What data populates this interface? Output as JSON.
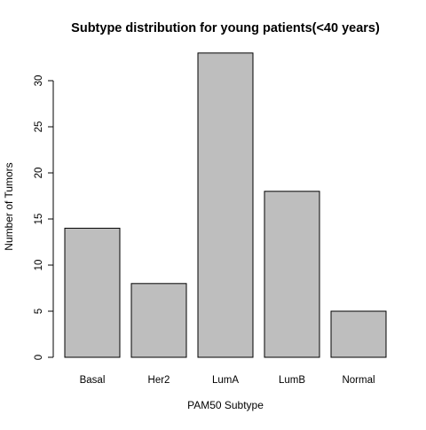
{
  "chart_data": {
    "type": "bar",
    "title": "Subtype distribution for young patients(<40 years)",
    "xlabel": "PAM50 Subtype",
    "ylabel": "Number of Tumors",
    "categories": [
      "Basal",
      "Her2",
      "LumA",
      "LumB",
      "Normal"
    ],
    "values": [
      14,
      8,
      33,
      18,
      5
    ],
    "yticks": [
      0,
      5,
      10,
      15,
      20,
      25,
      30
    ],
    "ylim": [
      0,
      33
    ],
    "bar_color": "#bebebe",
    "bar_edge_color": "#000000",
    "grid": false,
    "legend": "none"
  }
}
